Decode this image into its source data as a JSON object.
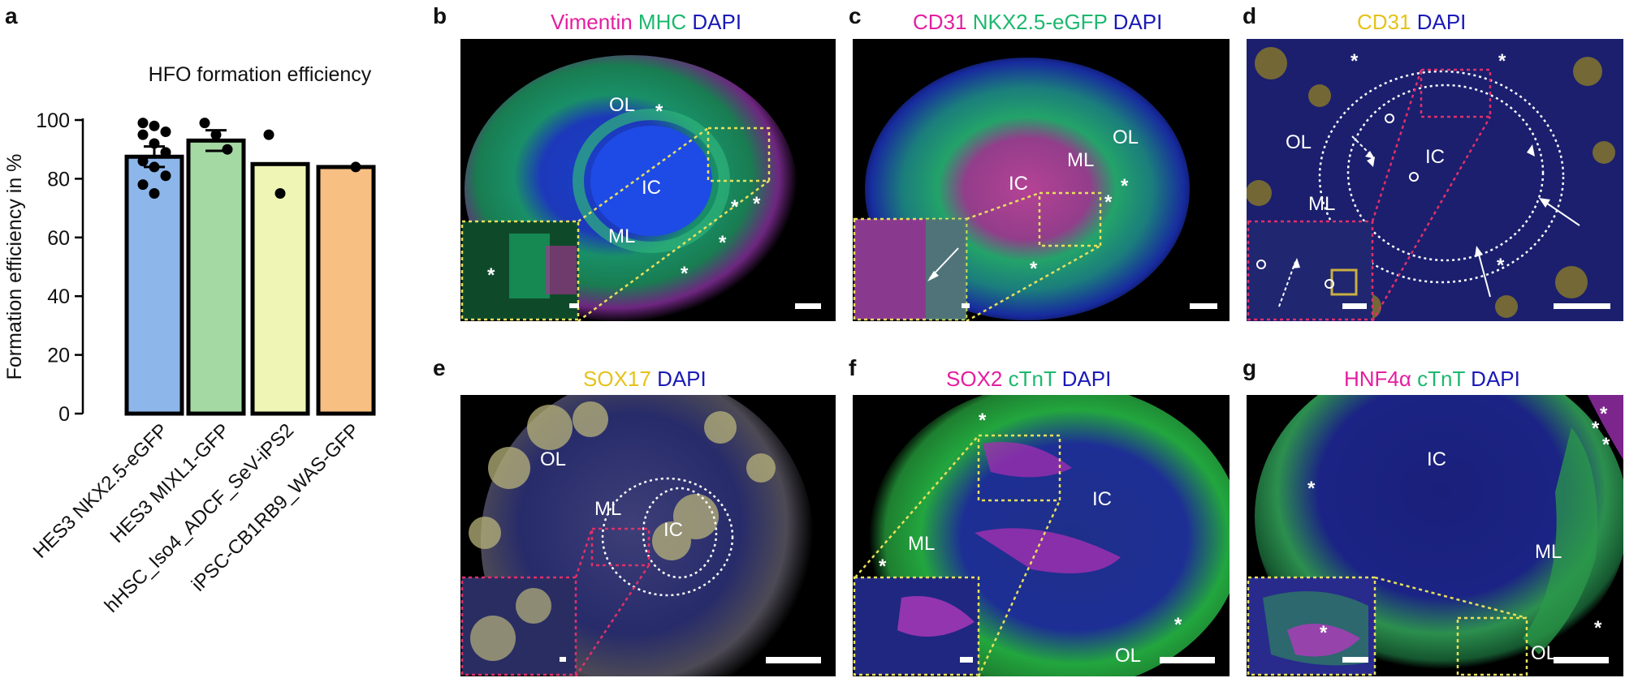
{
  "panels": {
    "a": "a",
    "b": "b",
    "c": "c",
    "d": "d",
    "e": "e",
    "f": "f",
    "g": "g"
  },
  "chart_data": {
    "type": "bar",
    "title": "HFO formation efficiency",
    "ylabel": "Formation efficiency in %",
    "xlabel": "",
    "ylim": [
      0,
      100
    ],
    "yticks": [
      0,
      20,
      40,
      60,
      80,
      100
    ],
    "categories": [
      "HES3 NKX2.5-eGFP",
      "HES3 MIXL1-GFP",
      "hHSC_Iso4_ADCF_SeV-iPS2",
      "iPSC-CB1RB9_WAS-GFP"
    ],
    "values": [
      87.5,
      93,
      85,
      84
    ],
    "errors": [
      3.5,
      3.5,
      0,
      0
    ],
    "colors": [
      "#8db7ea",
      "#a5d9a3",
      "#eef5b5",
      "#f7bf82"
    ],
    "points": [
      [
        99,
        98,
        96,
        95,
        92,
        89,
        86,
        84,
        81,
        78,
        75
      ],
      [
        99,
        95,
        90
      ],
      [
        95,
        75
      ],
      [
        84
      ]
    ]
  },
  "b": {
    "t1": "Vimentin",
    "t2": "MHC",
    "t3": "DAPI",
    "ol": "OL",
    "ml": "ML",
    "ic": "IC",
    "star": "*"
  },
  "c": {
    "t1": "CD31",
    "t2": "NKX2.5-eGFP",
    "t3": "DAPI",
    "ol": "OL",
    "ml": "ML",
    "ic": "IC",
    "star": "*"
  },
  "d": {
    "t1": "CD31",
    "t2": "DAPI",
    "ol": "OL",
    "ml": "ML",
    "ic": "IC",
    "star": "*"
  },
  "e": {
    "t1": "SOX17",
    "t2": "DAPI",
    "ol": "OL",
    "ml": "ML",
    "ic": "IC"
  },
  "f": {
    "t1": "SOX2",
    "t2": "cTnT",
    "t3": "DAPI",
    "ol": "OL",
    "ml": "ML",
    "ic": "IC",
    "star": "*"
  },
  "g": {
    "t1": "HNF4α",
    "t2": "cTnT",
    "t3": "DAPI",
    "ol": "OL",
    "ml": "ML",
    "ic": "IC",
    "star": "*"
  }
}
